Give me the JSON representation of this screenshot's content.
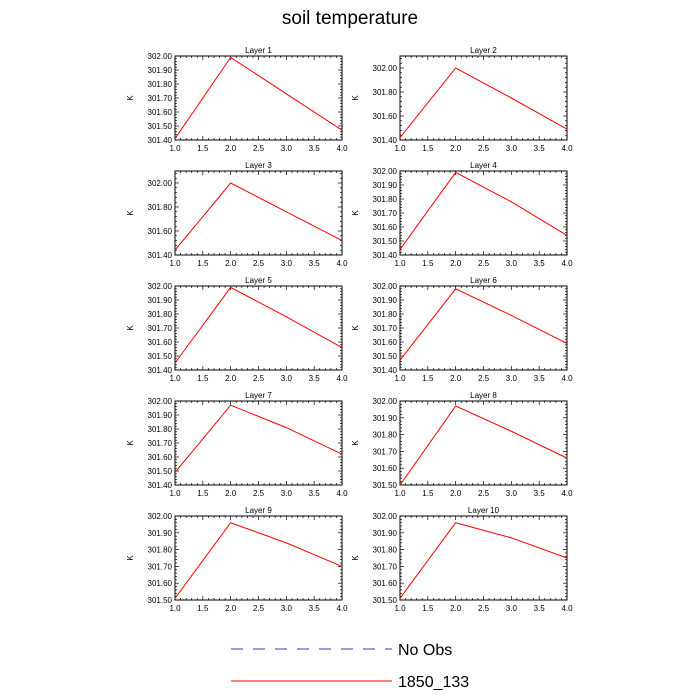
{
  "title": "soil temperature",
  "legend": {
    "placement": "bottom-center",
    "items": [
      {
        "label": "No Obs",
        "color": "#3333cc",
        "style": "dashed"
      },
      {
        "label": "1850_133",
        "color": "#ff0000",
        "style": "solid"
      }
    ]
  },
  "chart_data": [
    {
      "type": "line",
      "title": "Layer 1",
      "ylabel": "K",
      "xlim": [
        1.0,
        4.0
      ],
      "ylim": [
        301.4,
        302.0
      ],
      "xticks": [
        "1.0",
        "1.5",
        "2.0",
        "2.5",
        "3.0",
        "3.5",
        "4.0"
      ],
      "yticks": [
        "301.40",
        "301.50",
        "301.60",
        "301.70",
        "301.80",
        "301.90",
        "302.00"
      ],
      "series": [
        {
          "name": "1850_133",
          "color": "#ff0000",
          "x": [
            1.0,
            2.0,
            3.0,
            4.0
          ],
          "y": [
            301.41,
            301.99,
            301.73,
            301.47
          ]
        }
      ]
    },
    {
      "type": "line",
      "title": "Layer 2",
      "ylabel": "K",
      "xlim": [
        1.0,
        4.0
      ],
      "ylim": [
        301.4,
        302.1
      ],
      "xticks": [
        "1.0",
        "1.5",
        "2.0",
        "2.5",
        "3.0",
        "3.5",
        "4.0"
      ],
      "yticks": [
        "301.40",
        "301.60",
        "301.80",
        "302.00"
      ],
      "series": [
        {
          "name": "1850_133",
          "color": "#ff0000",
          "x": [
            1.0,
            2.0,
            3.0,
            4.0
          ],
          "y": [
            301.42,
            302.0,
            301.75,
            301.49
          ]
        }
      ]
    },
    {
      "type": "line",
      "title": "Layer 3",
      "ylabel": "K",
      "xlim": [
        1.0,
        4.0
      ],
      "ylim": [
        301.4,
        302.1
      ],
      "xticks": [
        "1.0",
        "1.5",
        "2.0",
        "2.5",
        "3.0",
        "3.5",
        "4.0"
      ],
      "yticks": [
        "301.40",
        "301.60",
        "301.80",
        "302.00"
      ],
      "series": [
        {
          "name": "1850_133",
          "color": "#ff0000",
          "x": [
            1.0,
            2.0,
            3.0,
            4.0
          ],
          "y": [
            301.44,
            302.0,
            301.76,
            301.52
          ]
        }
      ]
    },
    {
      "type": "line",
      "title": "Layer 4",
      "ylabel": "K",
      "xlim": [
        1.0,
        4.0
      ],
      "ylim": [
        301.4,
        302.0
      ],
      "xticks": [
        "1.0",
        "1.5",
        "2.0",
        "2.5",
        "3.0",
        "3.5",
        "4.0"
      ],
      "yticks": [
        "301.40",
        "301.50",
        "301.60",
        "301.70",
        "301.80",
        "301.90",
        "302.00"
      ],
      "series": [
        {
          "name": "1850_133",
          "color": "#ff0000",
          "x": [
            1.0,
            2.0,
            3.0,
            4.0
          ],
          "y": [
            301.44,
            301.99,
            301.78,
            301.54
          ]
        }
      ]
    },
    {
      "type": "line",
      "title": "Layer 5",
      "ylabel": "K",
      "xlim": [
        1.0,
        4.0
      ],
      "ylim": [
        301.4,
        302.0
      ],
      "xticks": [
        "1.0",
        "1.5",
        "2.0",
        "2.5",
        "3.0",
        "3.5",
        "4.0"
      ],
      "yticks": [
        "301.40",
        "301.50",
        "301.60",
        "301.70",
        "301.80",
        "301.90",
        "302.00"
      ],
      "series": [
        {
          "name": "1850_133",
          "color": "#ff0000",
          "x": [
            1.0,
            2.0,
            3.0,
            4.0
          ],
          "y": [
            301.45,
            301.99,
            301.78,
            301.56
          ]
        }
      ]
    },
    {
      "type": "line",
      "title": "Layer 6",
      "ylabel": "K",
      "xlim": [
        1.0,
        4.0
      ],
      "ylim": [
        301.4,
        302.0
      ],
      "xticks": [
        "1.0",
        "1.5",
        "2.0",
        "2.5",
        "3.0",
        "3.5",
        "4.0"
      ],
      "yticks": [
        "301.40",
        "301.50",
        "301.60",
        "301.70",
        "301.80",
        "301.90",
        "302.00"
      ],
      "series": [
        {
          "name": "1850_133",
          "color": "#ff0000",
          "x": [
            1.0,
            2.0,
            3.0,
            4.0
          ],
          "y": [
            301.47,
            301.98,
            301.79,
            301.59
          ]
        }
      ]
    },
    {
      "type": "line",
      "title": "Layer 7",
      "ylabel": "K",
      "xlim": [
        1.0,
        4.0
      ],
      "ylim": [
        301.4,
        302.0
      ],
      "xticks": [
        "1.0",
        "1.5",
        "2.0",
        "2.5",
        "3.0",
        "3.5",
        "4.0"
      ],
      "yticks": [
        "301.40",
        "301.50",
        "301.60",
        "301.70",
        "301.80",
        "301.90",
        "302.00"
      ],
      "series": [
        {
          "name": "1850_133",
          "color": "#ff0000",
          "x": [
            1.0,
            2.0,
            3.0,
            4.0
          ],
          "y": [
            301.49,
            301.97,
            301.81,
            301.62
          ]
        }
      ]
    },
    {
      "type": "line",
      "title": "Layer 8",
      "ylabel": "K",
      "xlim": [
        1.0,
        4.0
      ],
      "ylim": [
        301.5,
        302.0
      ],
      "xticks": [
        "1.0",
        "1.5",
        "2.0",
        "2.5",
        "3.0",
        "3.5",
        "4.0"
      ],
      "yticks": [
        "301.50",
        "301.60",
        "301.70",
        "301.80",
        "301.90",
        "302.00"
      ],
      "series": [
        {
          "name": "1850_133",
          "color": "#ff0000",
          "x": [
            1.0,
            2.0,
            3.0,
            4.0
          ],
          "y": [
            301.5,
            301.97,
            301.82,
            301.66
          ]
        }
      ]
    },
    {
      "type": "line",
      "title": "Layer 9",
      "ylabel": "K",
      "xlim": [
        1.0,
        4.0
      ],
      "ylim": [
        301.5,
        302.0
      ],
      "xticks": [
        "1.0",
        "1.5",
        "2.0",
        "2.5",
        "3.0",
        "3.5",
        "4.0"
      ],
      "yticks": [
        "301.50",
        "301.60",
        "301.70",
        "301.80",
        "301.90",
        "302.00"
      ],
      "series": [
        {
          "name": "1850_133",
          "color": "#ff0000",
          "x": [
            1.0,
            2.0,
            3.0,
            4.0
          ],
          "y": [
            301.51,
            301.96,
            301.84,
            301.7
          ]
        }
      ]
    },
    {
      "type": "line",
      "title": "Layer 10",
      "ylabel": "K",
      "xlim": [
        1.0,
        4.0
      ],
      "ylim": [
        301.5,
        302.0
      ],
      "xticks": [
        "1.0",
        "1.5",
        "2.0",
        "2.5",
        "3.0",
        "3.5",
        "4.0"
      ],
      "yticks": [
        "301.50",
        "301.60",
        "301.70",
        "301.80",
        "301.90",
        "302.00"
      ],
      "series": [
        {
          "name": "1850_133",
          "color": "#ff0000",
          "x": [
            1.0,
            2.0,
            3.0,
            4.0
          ],
          "y": [
            301.51,
            301.96,
            301.87,
            301.75
          ]
        }
      ]
    }
  ]
}
